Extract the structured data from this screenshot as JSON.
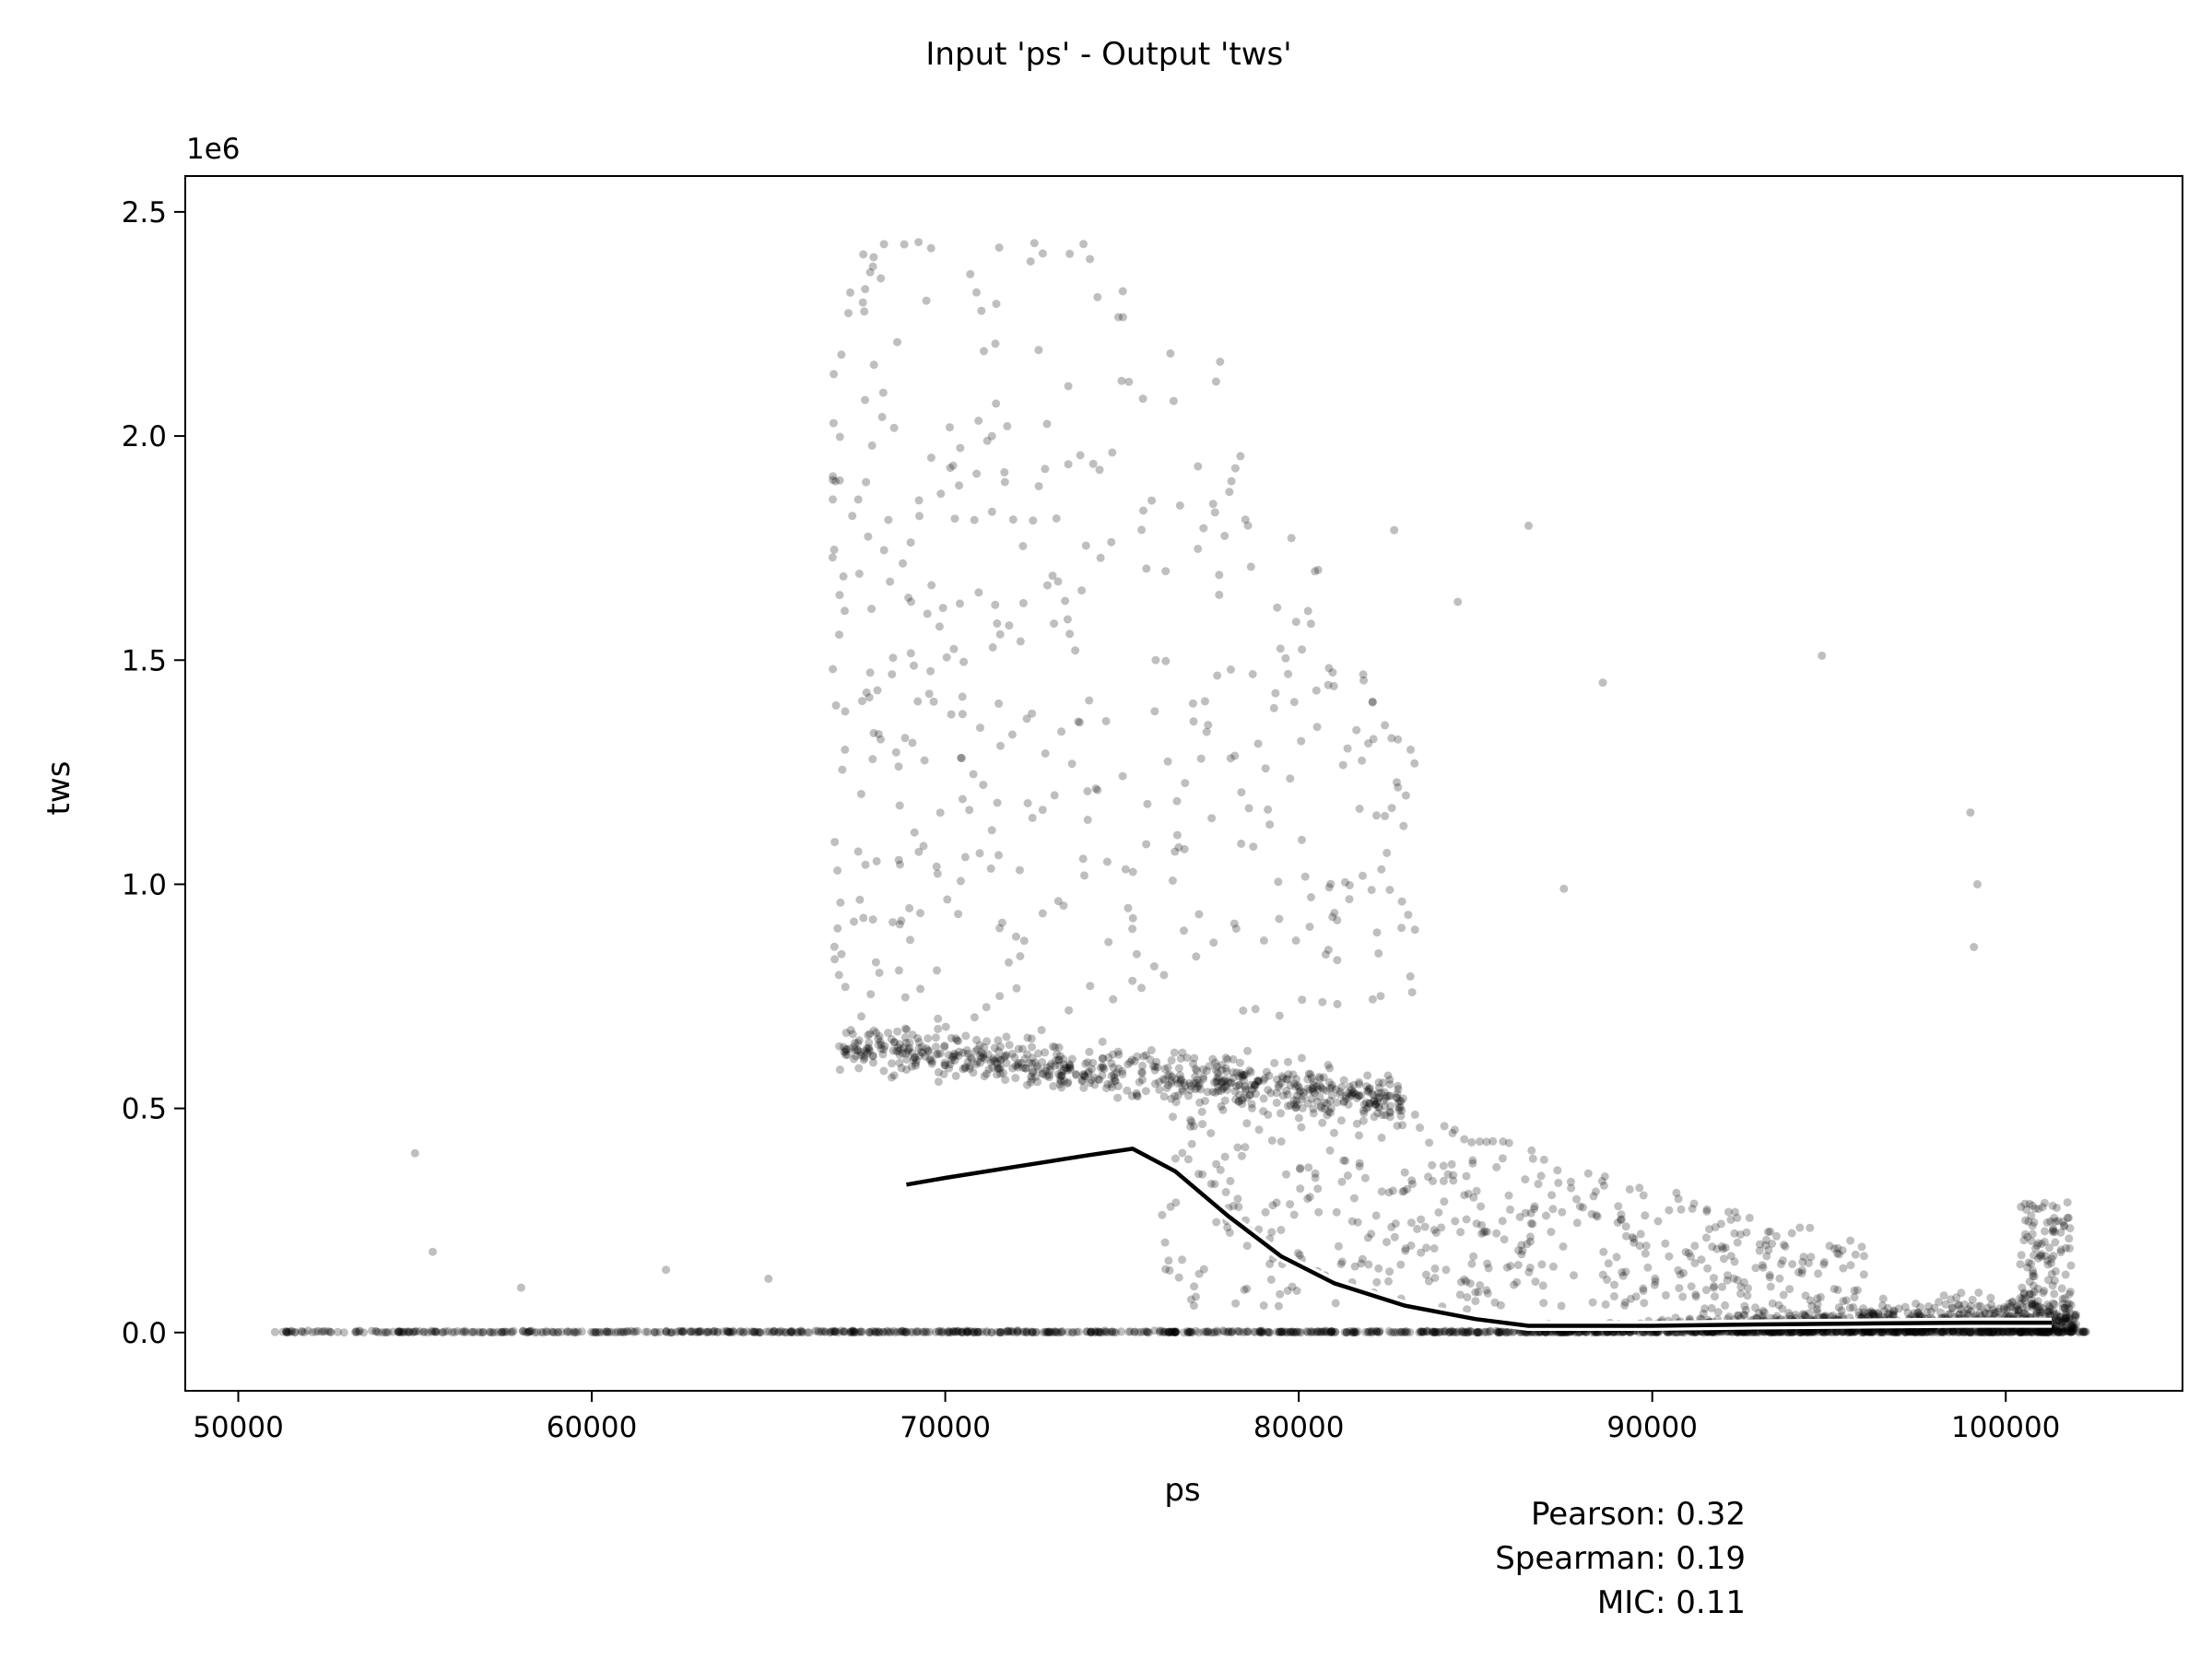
{
  "chart_data": {
    "type": "scatter",
    "title": "Input 'ps' - Output 'tws'",
    "xlabel": "ps",
    "ylabel": "tws",
    "y_scale_label": "1e6",
    "xlim": [
      48500,
      105000
    ],
    "ylim": [
      -0.13,
      2.58
    ],
    "x_ticks": [
      50000,
      60000,
      70000,
      80000,
      90000,
      100000
    ],
    "x_tick_labels": [
      "50000",
      "60000",
      "70000",
      "80000",
      "90000",
      "100000"
    ],
    "y_ticks": [
      0.0,
      0.5,
      1.0,
      1.5,
      2.0,
      2.5
    ],
    "y_tick_labels": [
      "0.0",
      "0.5",
      "1.0",
      "1.5",
      "2.0",
      "2.5"
    ],
    "grid": false,
    "point_color": "#000000",
    "point_opacity": 0.25,
    "trend_line": {
      "color": "#000000",
      "outline_color": "#ffffff",
      "x": [
        68900,
        70000,
        72000,
        74000,
        75300,
        76500,
        78000,
        79500,
        81000,
        83000,
        85000,
        86500,
        88000,
        90000,
        93000,
        96000,
        99000,
        101300
      ],
      "y": [
        0.33,
        0.345,
        0.37,
        0.395,
        0.41,
        0.36,
        0.26,
        0.17,
        0.11,
        0.06,
        0.03,
        0.015,
        0.015,
        0.015,
        0.018,
        0.02,
        0.022,
        0.022
      ]
    },
    "baseline_band": {
      "x_range": [
        51000,
        102300
      ],
      "y": 0.0
    },
    "dense_cluster": {
      "x_range": [
        86000,
        102000
      ],
      "y_range": [
        0.0,
        0.15
      ]
    },
    "upper_band": {
      "x_range": [
        67000,
        83000
      ],
      "y_range": [
        0.45,
        0.75
      ]
    },
    "outliers": [
      {
        "x": 55000,
        "y": 0.4
      },
      {
        "x": 55500,
        "y": 0.18
      },
      {
        "x": 58000,
        "y": 0.1
      },
      {
        "x": 62100,
        "y": 0.14
      },
      {
        "x": 65000,
        "y": 0.12
      },
      {
        "x": 86500,
        "y": 1.8
      },
      {
        "x": 94800,
        "y": 1.51
      },
      {
        "x": 99000,
        "y": 1.16
      },
      {
        "x": 99200,
        "y": 1.0
      },
      {
        "x": 99100,
        "y": 0.86
      },
      {
        "x": 88600,
        "y": 1.45
      },
      {
        "x": 84500,
        "y": 1.63
      },
      {
        "x": 82700,
        "y": 1.79
      },
      {
        "x": 87500,
        "y": 0.99
      }
    ],
    "stats": [
      "Pearson: 0.32",
      "Spearman: 0.19",
      "MIC: 0.11"
    ]
  }
}
